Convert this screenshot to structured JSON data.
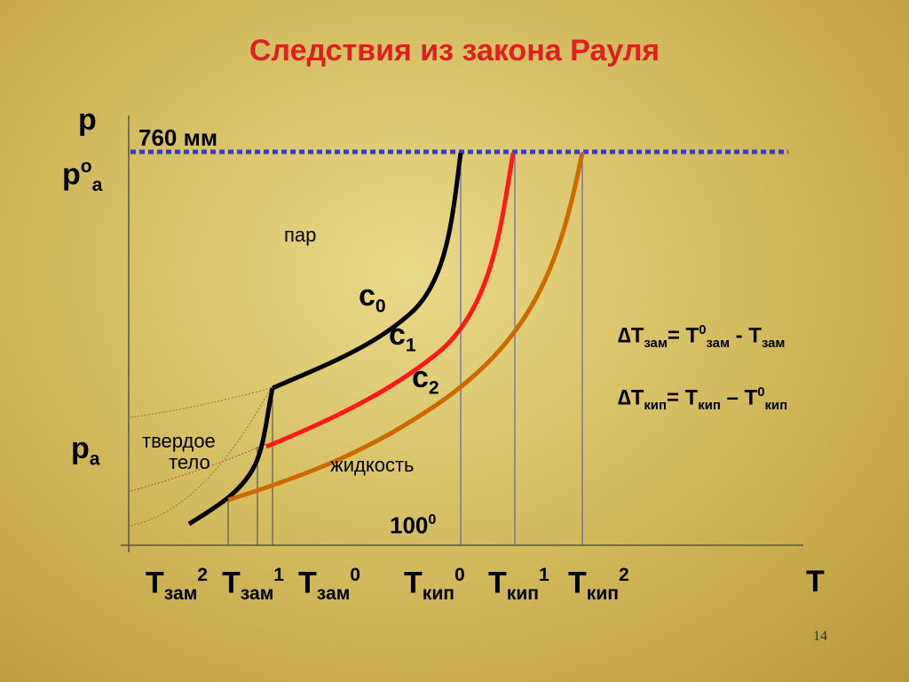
{
  "title": "Следствия из закона Рауля",
  "axis": {
    "y_label": "p",
    "x_label": "T",
    "p0_label_main": "p",
    "p0_label_sup": "o",
    "p0_label_sub": "a",
    "pa_label_main": "p",
    "pa_label_sub": "a",
    "pressure_760": "760 мм",
    "temp_100_main": "100",
    "temp_100_sup": "0"
  },
  "regions": {
    "vapor": "пар",
    "solid_line1": "твердое",
    "solid_line2": "тело",
    "liquid": "жидкость"
  },
  "curves": [
    {
      "main": "c",
      "sub": "0",
      "color": "#000000"
    },
    {
      "main": "c",
      "sub": "1",
      "color": "#ff1a1a"
    },
    {
      "main": "c",
      "sub": "2",
      "color": "#cc6a00"
    }
  ],
  "x_ticks": [
    {
      "main": "T",
      "sub": "зам",
      "sup": "2"
    },
    {
      "main": "T",
      "sub": "зам",
      "sup": "1"
    },
    {
      "main": "T",
      "sub": "зам",
      "sup": "0"
    },
    {
      "main": "T",
      "sub": "кип",
      "sup": "0"
    },
    {
      "main": "T",
      "sub": "кип",
      "sup": "1"
    },
    {
      "main": "T",
      "sub": "кип",
      "sup": "2"
    }
  ],
  "formulas": {
    "freeze": {
      "delta": "∆",
      "t1": "T",
      "s1": "зам",
      "eq": "= T",
      "sup2": "0",
      "s2": "зам",
      "minus": " - T",
      "s3": "зам"
    },
    "boil": {
      "delta": "∆",
      "t1": "T",
      "s1": "кип",
      "eq": "= T",
      "s2": "кип",
      "minus": " – T",
      "sup3": "0",
      "s3": "кип"
    }
  },
  "page_number": "14"
}
